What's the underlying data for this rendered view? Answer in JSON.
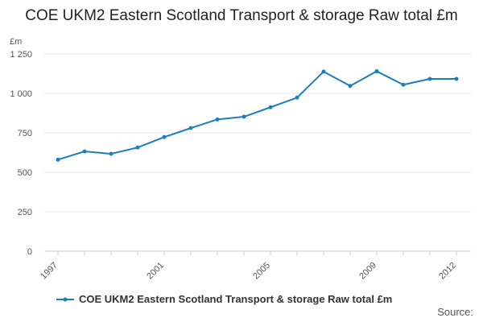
{
  "chart_data": {
    "type": "line",
    "title": "COE UKM2 Eastern Scotland Transport & storage Raw total £m",
    "y_unit_label": "£m",
    "ylim": [
      0,
      1250
    ],
    "yticks": [
      0,
      250,
      500,
      750,
      1000,
      1250
    ],
    "ytick_labels": [
      "0",
      "250",
      "500",
      "750",
      "1 000",
      "1 250"
    ],
    "x": [
      1997,
      1998,
      1999,
      2000,
      2001,
      2002,
      2003,
      2004,
      2005,
      2006,
      2007,
      2008,
      2009,
      2010,
      2011,
      2012
    ],
    "xtick_labels": [
      "1997",
      "2001",
      "2005",
      "2009",
      "2012"
    ],
    "series": [
      {
        "name": "COE UKM2 Eastern Scotland Transport & storage Raw total £m",
        "color": "#1a7fbf",
        "values": [
          580,
          632,
          617,
          657,
          723,
          780,
          835,
          852,
          912,
          973,
          1138,
          1047,
          1140,
          1055,
          1092,
          1092
        ]
      }
    ],
    "grid": true,
    "legend_position": "bottom-left"
  },
  "source_label": "Source:"
}
